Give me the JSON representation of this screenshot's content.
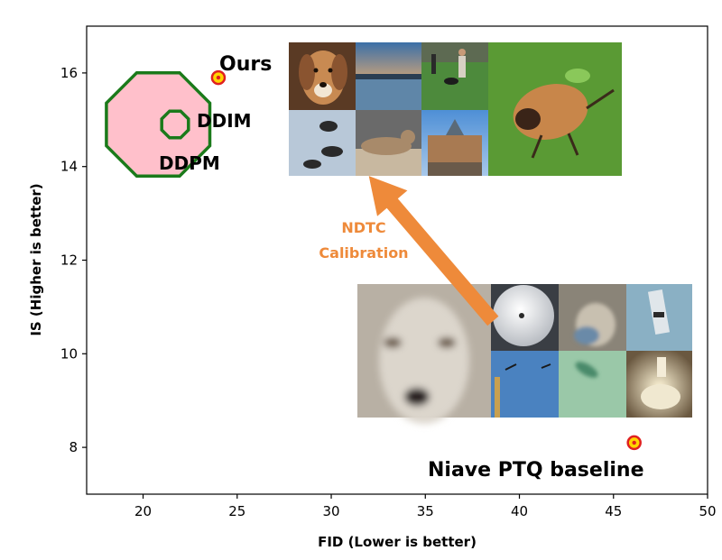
{
  "chart_data": {
    "type": "scatter",
    "xlabel": "FID (Lower is better)",
    "ylabel": "IS (Higher is better)",
    "xlim": [
      17,
      50
    ],
    "ylim": [
      7,
      17
    ],
    "xticks": [
      20,
      25,
      30,
      35,
      40,
      45,
      50
    ],
    "yticks": [
      8,
      10,
      12,
      14,
      16
    ],
    "grid": false,
    "points": [
      {
        "label": "Ours",
        "x": 24.0,
        "y": 15.9,
        "marker": "ring",
        "color": "#ffd400",
        "edge": "#e02020"
      },
      {
        "label": "Niave PTQ baseline",
        "x": 46.1,
        "y": 8.1,
        "marker": "ring",
        "color": "#ffd400",
        "edge": "#e02020"
      },
      {
        "label": "DDPM",
        "x": 20.8,
        "y": 14.9,
        "marker": "octagon-large",
        "color": "#ffc0cb",
        "edge": "#1a7a1a"
      },
      {
        "label": "DDIM",
        "x": 21.7,
        "y": 14.9,
        "marker": "octagon-small",
        "color": "none",
        "edge": "#1a7a1a"
      }
    ],
    "annotations": [
      {
        "text_lines": [
          "NDTC",
          "Calibration"
        ],
        "color": "#ee8a3a",
        "arrow_from": [
          38.6,
          10.7
        ],
        "arrow_to": [
          32.0,
          13.8
        ]
      }
    ],
    "inset_images": [
      {
        "name": "calibrated-sample-grid",
        "content": "dog, lake sunset, field with people and dog, bird on grass; birds, seal, building"
      },
      {
        "name": "baseline-sample-grid",
        "content": "blurry white dog, noisy low-quality samples"
      }
    ]
  }
}
